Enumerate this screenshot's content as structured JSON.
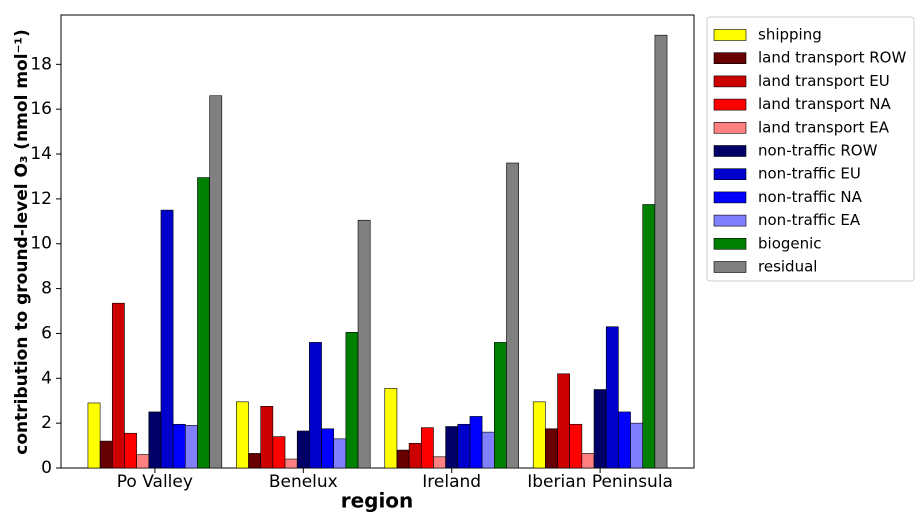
{
  "chart_data": {
    "type": "bar",
    "xlabel": "region",
    "ylabel": "contribution to ground-level O₃ (nmol mol⁻¹)",
    "categories": [
      "Po Valley",
      "Benelux",
      "Ireland",
      "Iberian Peninsula"
    ],
    "ylim": [
      0,
      20.2
    ],
    "yticks": [
      0,
      2,
      4,
      6,
      8,
      10,
      12,
      14,
      16,
      18
    ],
    "legend": "outside upper right",
    "series": [
      {
        "name": "shipping",
        "color": "#ffff00",
        "values": [
          2.9,
          2.95,
          3.55,
          2.95
        ]
      },
      {
        "name": "land transport ROW",
        "color": "#660000",
        "values": [
          1.2,
          0.65,
          0.8,
          1.75
        ]
      },
      {
        "name": "land transport EU",
        "color": "#cc0000",
        "values": [
          7.35,
          2.75,
          1.1,
          4.2
        ]
      },
      {
        "name": "land transport NA",
        "color": "#ff0000",
        "values": [
          1.55,
          1.4,
          1.8,
          1.95
        ]
      },
      {
        "name": "land transport EA",
        "color": "#ff8080",
        "values": [
          0.6,
          0.4,
          0.5,
          0.65
        ]
      },
      {
        "name": "non-traffic ROW",
        "color": "#000066",
        "values": [
          2.5,
          1.65,
          1.85,
          3.5
        ]
      },
      {
        "name": "non-traffic EU",
        "color": "#0000cc",
        "values": [
          11.5,
          5.6,
          1.95,
          6.3
        ]
      },
      {
        "name": "non-traffic NA",
        "color": "#0000ff",
        "values": [
          1.95,
          1.75,
          2.3,
          2.5
        ]
      },
      {
        "name": "non-traffic EA",
        "color": "#8080ff",
        "values": [
          1.9,
          1.3,
          1.6,
          2.0
        ]
      },
      {
        "name": "biogenic",
        "color": "#008000",
        "values": [
          12.95,
          6.05,
          5.6,
          11.75
        ]
      },
      {
        "name": "residual",
        "color": "#808080",
        "values": [
          16.6,
          11.05,
          13.6,
          19.3
        ]
      }
    ]
  }
}
